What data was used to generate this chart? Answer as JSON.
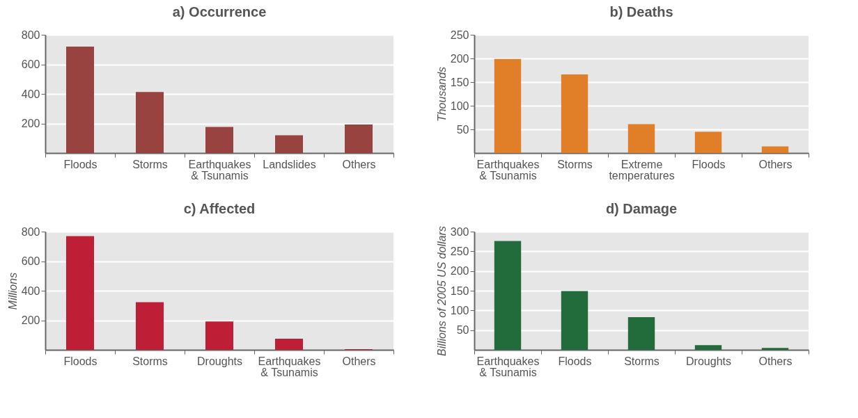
{
  "chart_data": [
    {
      "type": "bar",
      "title": "a) Occurrence",
      "categories": [
        "Floods",
        "Storms",
        "Earthquakes\n& Tsunamis",
        "Landslides",
        "Others"
      ],
      "values": [
        720,
        413,
        177,
        120,
        193
      ],
      "color": "#994341",
      "ylim": [
        0,
        800
      ],
      "yticks": [
        200,
        400,
        600,
        800
      ],
      "grid": "y"
    },
    {
      "type": "bar",
      "title": "b) Deaths",
      "ylabel": "Thousands",
      "categories": [
        "Earthquakes\n& Tsunamis",
        "Storms",
        "Extreme\ntemperatures",
        "Floods",
        "Others"
      ],
      "values": [
        199,
        166,
        61,
        45,
        14
      ],
      "color": "#e07f28",
      "ylim": [
        0,
        250
      ],
      "yticks": [
        50,
        100,
        150,
        200,
        250
      ],
      "grid": "y"
    },
    {
      "type": "bar",
      "title": "c) Affected",
      "ylabel": "Millions",
      "categories": [
        "Floods",
        "Storms",
        "Droughts",
        "Earthquakes\n& Tsunamis",
        "Others"
      ],
      "values": [
        770,
        322,
        192,
        75,
        5
      ],
      "color": "#be1e36",
      "ylim": [
        0,
        800
      ],
      "yticks": [
        200,
        400,
        600,
        800
      ],
      "grid": "y"
    },
    {
      "type": "bar",
      "title": "d) Damage",
      "ylabel": "Billions of 2005 US dollars",
      "categories": [
        "Earthquakes\n& Tsunamis",
        "Floods",
        "Storms",
        "Droughts",
        "Others"
      ],
      "values": [
        276,
        149,
        83,
        12,
        5
      ],
      "color": "#216c3a",
      "ylim": [
        0,
        300
      ],
      "yticks": [
        50,
        100,
        150,
        200,
        250,
        300
      ],
      "grid": "y"
    }
  ]
}
